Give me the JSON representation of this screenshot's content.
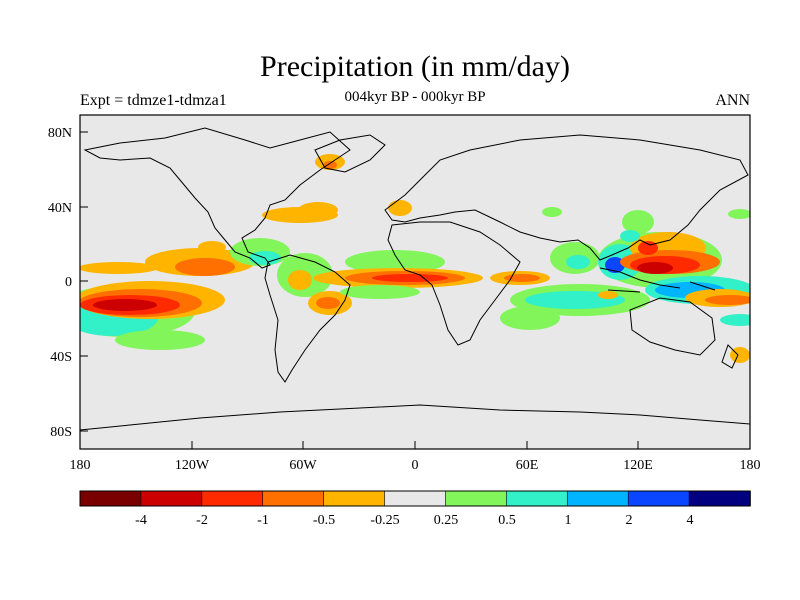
{
  "header": {
    "title": "Precipitation (in mm/day)",
    "experiment": "Expt = tdmze1-tdmza1",
    "period": "004kyr BP - 000kyr BP",
    "season": "ANN"
  },
  "axes": {
    "lat_ticks": [
      "80N",
      "40N",
      "0",
      "40S",
      "80S"
    ],
    "lon_ticks": [
      "180",
      "120W",
      "60W",
      "0",
      "60E",
      "120E",
      "180"
    ]
  },
  "colorbar": {
    "colors": [
      "#7a0000",
      "#cc0000",
      "#ff2a00",
      "#ff7000",
      "#ffb400",
      "#e8e8e8",
      "#82f55a",
      "#32f0c8",
      "#00b4ff",
      "#0a46ff",
      "#000080"
    ],
    "labels": [
      "-4",
      "-2",
      "-1",
      "-0.5",
      "-0.25",
      "0.25",
      "0.5",
      "1",
      "2",
      "4"
    ]
  },
  "map": {
    "background": "#e8e8e8",
    "features": [
      {
        "label": "+0.25..+0.5 light green",
        "color": "#82f55a"
      },
      {
        "label": "+0.5..+1 cyan",
        "color": "#32f0c8"
      },
      {
        "label": "+1..+2 blue",
        "color": "#00b4ff"
      },
      {
        "label": "-0.25..-0.5 orange-yellow",
        "color": "#ffb400"
      },
      {
        "label": "-0.5..-1 orange",
        "color": "#ff7000"
      },
      {
        "label": "-1..-2 red-orange",
        "color": "#ff2a00"
      },
      {
        "label": "-2..-4 red",
        "color": "#cc0000"
      }
    ]
  }
}
